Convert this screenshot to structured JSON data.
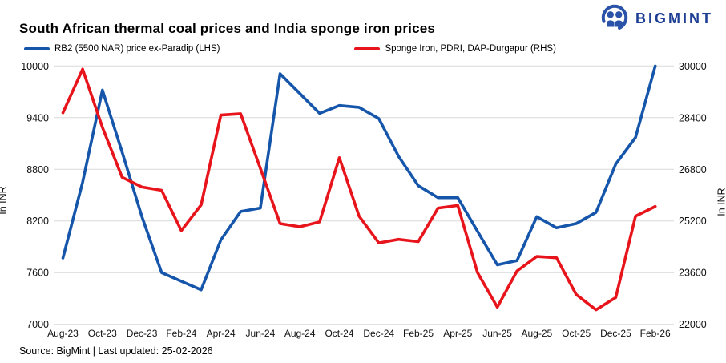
{
  "header": {
    "title": "South African thermal coal prices and India sponge iron prices",
    "brand": "BIGMINT"
  },
  "legend": [
    {
      "label": "RB2 (5500 NAR) price ex-Paradip (LHS)",
      "color": "#1556ab"
    },
    {
      "label": "Sponge Iron, PDRI, DAP-Durgapur (RHS)",
      "color": "#e8141c"
    }
  ],
  "footer": {
    "source": "Source: BigMint | Last updated: 25-02-2026"
  },
  "chart_data": {
    "type": "line",
    "title": "South African thermal coal prices and India sponge iron prices",
    "grid": "horizontal-only",
    "gridline_color": "#d9d9d9",
    "legend_position": "top-left",
    "x": [
      "Aug-23",
      "Sep-23",
      "Oct-23",
      "Nov-23",
      "Dec-23",
      "Jan-24",
      "Feb-24",
      "Mar-24",
      "Apr-24",
      "May-24",
      "Jun-24",
      "Jul-24",
      "Aug-24",
      "Sep-24",
      "Oct-24",
      "Nov-24",
      "Dec-24",
      "Jan-25",
      "Feb-25",
      "Mar-25",
      "Apr-25",
      "May-25",
      "Jun-25",
      "Jul-25",
      "Aug-25",
      "Sep-25",
      "Oct-25",
      "Nov-25",
      "Dec-25",
      "Jan-26",
      "Feb-26"
    ],
    "x_tick_labels": [
      "Aug-23",
      "Oct-23",
      "Dec-23",
      "Feb-24",
      "Apr-24",
      "Jun-24",
      "Aug-24",
      "Oct-24",
      "Dec-24",
      "Feb-25",
      "Apr-25",
      "Jun-25",
      "Aug-25",
      "Oct-25",
      "Dec-25",
      "Feb-26"
    ],
    "left_axis": {
      "label": "In INR",
      "min": 7000,
      "max": 10000,
      "ticks": [
        10000,
        9400,
        8800,
        8200,
        7600,
        7000
      ]
    },
    "right_axis": {
      "label": "In INR",
      "min": 22000,
      "max": 30000,
      "ticks": [
        30000,
        28400,
        26800,
        25200,
        23600,
        22000
      ]
    },
    "series": [
      {
        "name": "RB2 (5500 NAR) price ex-Paradip (LHS)",
        "axis": "left",
        "color": "#1556ab",
        "values": [
          7770,
          8650,
          9720,
          9000,
          8250,
          7600,
          7500,
          7400,
          7980,
          8310,
          8350,
          9910,
          9680,
          9450,
          9540,
          9520,
          9390,
          8950,
          8610,
          8470,
          8470,
          8080,
          7690,
          7740,
          8250,
          8120,
          8170,
          8300,
          8860,
          9170,
          10000
        ]
      },
      {
        "name": "Sponge Iron, PDRI, DAP-Durgapur (RHS)",
        "axis": "right",
        "color": "#e8141c",
        "values": [
          28550,
          29900,
          28100,
          26550,
          26250,
          26150,
          24900,
          25700,
          28480,
          28520,
          26830,
          25120,
          25020,
          25170,
          27160,
          25350,
          24520,
          24630,
          24560,
          25600,
          25680,
          23600,
          22530,
          23650,
          24100,
          24060,
          22920,
          22450,
          22830,
          25350,
          25650
        ]
      }
    ]
  }
}
